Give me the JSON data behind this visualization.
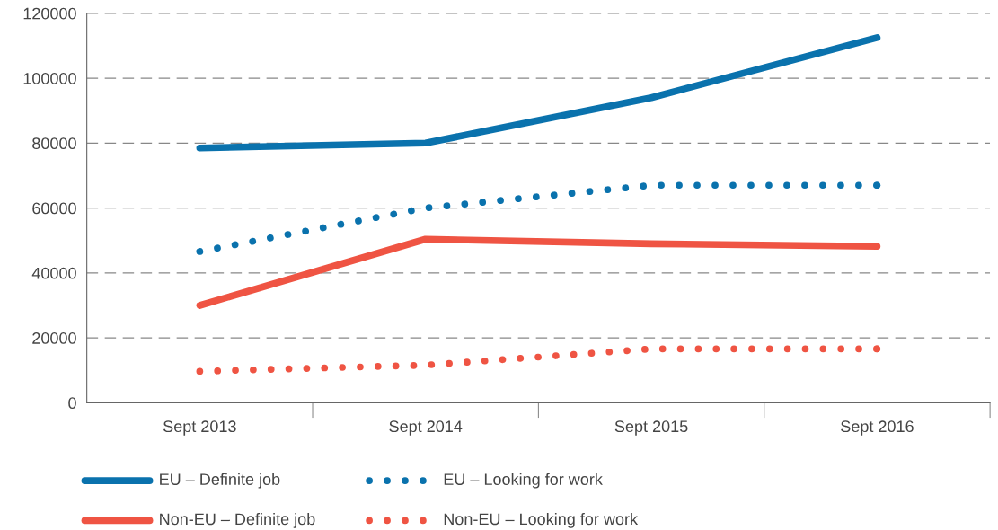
{
  "chart_data": {
    "type": "line",
    "categories": [
      "Sept 2013",
      "Sept 2014",
      "Sept 2015",
      "Sept 2016"
    ],
    "series": [
      {
        "name": "EU – Definite job",
        "color": "#0a72ad",
        "line_style": "solid",
        "values": [
          78500,
          80000,
          94000,
          112500
        ]
      },
      {
        "name": "EU – Looking for work",
        "color": "#0a72ad",
        "line_style": "dotted",
        "values": [
          46600,
          60000,
          67000,
          67000
        ]
      },
      {
        "name": "Non-EU – Definite job",
        "color": "#ef5443",
        "line_style": "solid",
        "values": [
          30000,
          50400,
          49000,
          48200
        ]
      },
      {
        "name": "Non-EU – Looking for work",
        "color": "#ef5443",
        "line_style": "dotted",
        "values": [
          9700,
          11600,
          16600,
          16600
        ]
      }
    ],
    "ylim": [
      0,
      120000
    ],
    "yticks": [
      0,
      20000,
      40000,
      60000,
      80000,
      100000,
      120000
    ],
    "grid": "y",
    "legend": "bottom",
    "marker": "none"
  }
}
